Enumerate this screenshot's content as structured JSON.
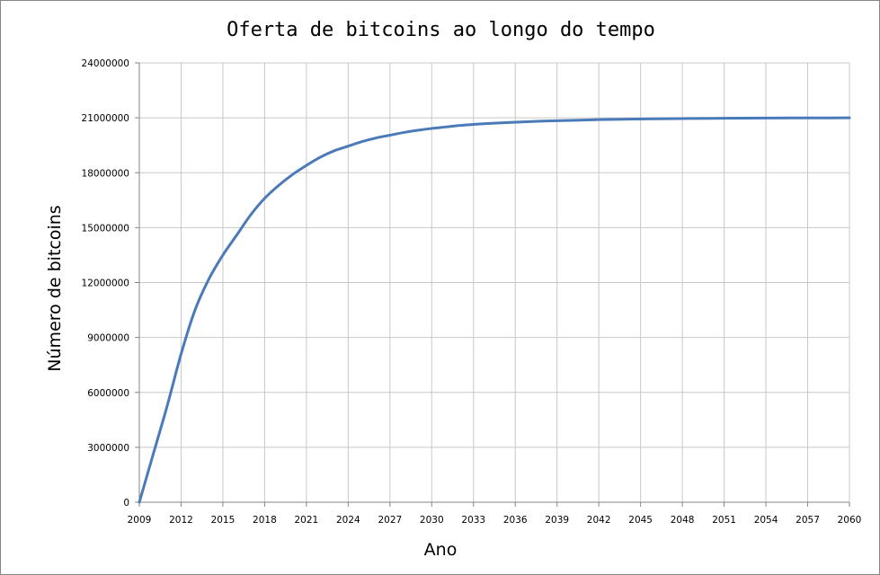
{
  "chart_data": {
    "type": "line",
    "title": "Oferta de bitcoins ao longo do tempo",
    "xlabel": "Ano",
    "ylabel": "Número de bitcoins",
    "xlim": [
      2009,
      2060
    ],
    "ylim": [
      0,
      24000000
    ],
    "x_ticks": [
      "2009",
      "2012",
      "2015",
      "2018",
      "2021",
      "2024",
      "2027",
      "2030",
      "2033",
      "2036",
      "2039",
      "2042",
      "2045",
      "2048",
      "2051",
      "2054",
      "2057",
      "2060"
    ],
    "y_ticks": [
      "0",
      "3000000",
      "6000000",
      "9000000",
      "12000000",
      "15000000",
      "18000000",
      "21000000",
      "24000000"
    ],
    "grid": true,
    "colors": {
      "line": "#4a7ab8",
      "grid": "#c8c8c8",
      "axis": "#868686"
    },
    "series": [
      {
        "x": [
          2009,
          2010,
          2011,
          2012,
          2013,
          2014,
          2015,
          2016,
          2017,
          2018,
          2019,
          2020,
          2021,
          2022,
          2023,
          2024,
          2025,
          2026,
          2027,
          2028,
          2029,
          2030,
          2031,
          2032,
          2033,
          2034,
          2036,
          2038,
          2040,
          2042,
          2044,
          2046,
          2048,
          2050,
          2052,
          2054,
          2056,
          2058,
          2060
        ],
        "values": [
          0,
          2630000,
          5260000,
          8100000,
          10500000,
          12200000,
          13500000,
          14600000,
          15700000,
          16600000,
          17300000,
          17900000,
          18400000,
          18850000,
          19200000,
          19450000,
          19700000,
          19900000,
          20050000,
          20200000,
          20320000,
          20420000,
          20500000,
          20580000,
          20640000,
          20690000,
          20760000,
          20820000,
          20860000,
          20900000,
          20925000,
          20945000,
          20960000,
          20972000,
          20980000,
          20986000,
          20991000,
          20995000,
          20998000
        ]
      }
    ]
  }
}
